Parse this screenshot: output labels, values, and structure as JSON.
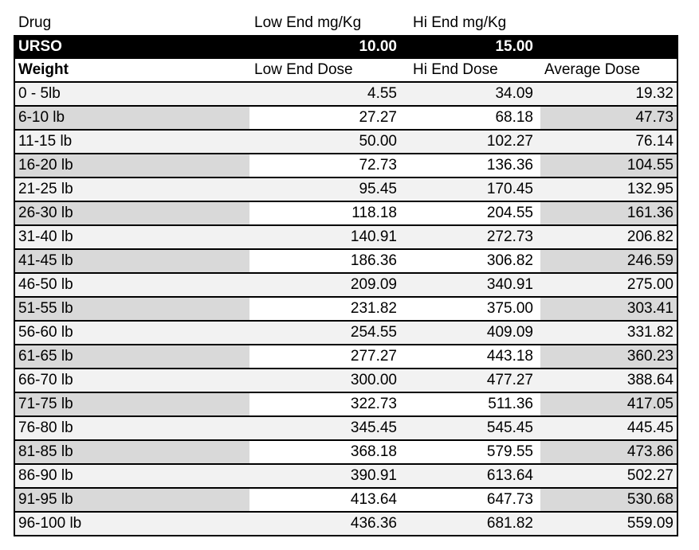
{
  "colors": {
    "row_light": "#F2F2F2",
    "row_dark": "#D9D9D9",
    "highlight_bg": "#000000",
    "highlight_text": "#FFFFFF",
    "border": "#000000"
  },
  "drug_header": {
    "drug": "Drug",
    "low": "Low End mg/Kg",
    "hi": "Hi End mg/Kg"
  },
  "drug_row": {
    "name": "URSO",
    "low": "10.00",
    "hi": "15.00"
  },
  "dose_header": {
    "weight": "Weight",
    "low": "Low End Dose",
    "hi": "Hi End Dose",
    "avg": "Average Dose"
  },
  "rows": [
    {
      "weight": "0 - 5lb",
      "low": "4.55",
      "hi": "34.09",
      "avg": "19.32"
    },
    {
      "weight": "6-10 lb",
      "low": "27.27",
      "hi": "68.18",
      "avg": "47.73"
    },
    {
      "weight": "11-15 lb",
      "low": "50.00",
      "hi": "102.27",
      "avg": "76.14"
    },
    {
      "weight": "16-20 lb",
      "low": "72.73",
      "hi": "136.36",
      "avg": "104.55"
    },
    {
      "weight": "21-25 lb",
      "low": "95.45",
      "hi": "170.45",
      "avg": "132.95"
    },
    {
      "weight": "26-30 lb",
      "low": "118.18",
      "hi": "204.55",
      "avg": "161.36"
    },
    {
      "weight": "31-40 lb",
      "low": "140.91",
      "hi": "272.73",
      "avg": "206.82"
    },
    {
      "weight": "41-45 lb",
      "low": "186.36",
      "hi": "306.82",
      "avg": "246.59"
    },
    {
      "weight": "46-50 lb",
      "low": "209.09",
      "hi": "340.91",
      "avg": "275.00"
    },
    {
      "weight": "51-55 lb",
      "low": "231.82",
      "hi": "375.00",
      "avg": "303.41"
    },
    {
      "weight": "56-60 lb",
      "low": "254.55",
      "hi": "409.09",
      "avg": "331.82"
    },
    {
      "weight": "61-65 lb",
      "low": "277.27",
      "hi": "443.18",
      "avg": "360.23"
    },
    {
      "weight": "66-70 lb",
      "low": "300.00",
      "hi": "477.27",
      "avg": "388.64"
    },
    {
      "weight": "71-75 lb",
      "low": "322.73",
      "hi": "511.36",
      "avg": "417.05"
    },
    {
      "weight": "76-80 lb",
      "low": "345.45",
      "hi": "545.45",
      "avg": "445.45"
    },
    {
      "weight": "81-85 lb",
      "low": "368.18",
      "hi": "579.55",
      "avg": "473.86"
    },
    {
      "weight": "86-90 lb",
      "low": "390.91",
      "hi": "613.64",
      "avg": "502.27"
    },
    {
      "weight": "91-95 lb",
      "low": "413.64",
      "hi": "647.73",
      "avg": "530.68"
    },
    {
      "weight": "96-100 lb",
      "low": "436.36",
      "hi": "681.82",
      "avg": "559.09"
    }
  ]
}
